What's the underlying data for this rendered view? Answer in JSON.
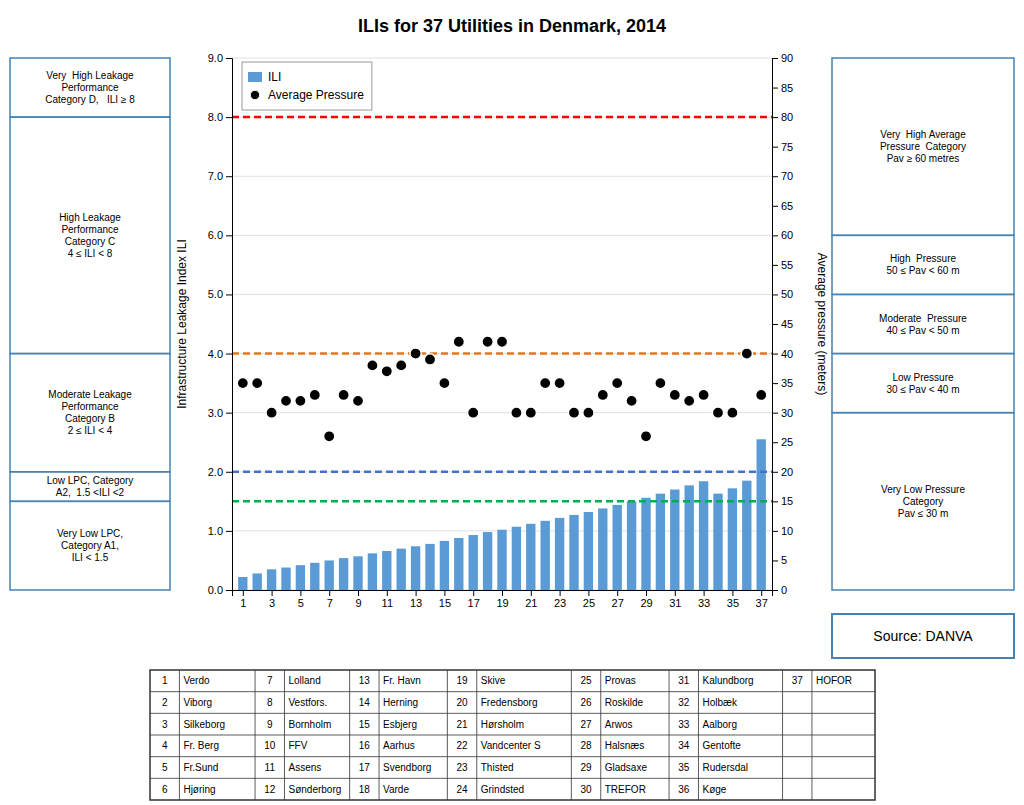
{
  "chart_data": {
    "type": "bar",
    "title": "ILIs for 37 Utilities in Denmark, 2014",
    "x": [
      1,
      2,
      3,
      4,
      5,
      6,
      7,
      8,
      9,
      10,
      11,
      12,
      13,
      14,
      15,
      16,
      17,
      18,
      19,
      20,
      21,
      22,
      23,
      24,
      25,
      26,
      27,
      28,
      29,
      30,
      31,
      32,
      33,
      34,
      35,
      36,
      37
    ],
    "xlim": [
      0.25,
      37.75
    ],
    "xticks": [
      1,
      3,
      5,
      7,
      9,
      11,
      13,
      15,
      17,
      19,
      21,
      23,
      25,
      27,
      29,
      31,
      33,
      35,
      37
    ],
    "ylim": [
      0.0,
      9.0
    ],
    "yticks": [
      {
        "value": 0.0,
        "label": "0.0"
      },
      {
        "value": 1.0,
        "label": "1.0"
      },
      {
        "value": 2.0,
        "label": "2.0"
      },
      {
        "value": 3.0,
        "label": "3.0"
      },
      {
        "value": 4.0,
        "label": "4.0"
      },
      {
        "value": 5.0,
        "label": "5.0"
      },
      {
        "value": 6.0,
        "label": "6.0"
      },
      {
        "value": 7.0,
        "label": "7.0"
      },
      {
        "value": 8.0,
        "label": "8.0"
      },
      {
        "value": 9.0,
        "label": "9.0"
      }
    ],
    "y2lim": [
      0,
      90
    ],
    "y2ticks": [
      0,
      5,
      10,
      15,
      20,
      25,
      30,
      35,
      40,
      45,
      50,
      55,
      60,
      65,
      70,
      75,
      80,
      85,
      90
    ],
    "ylabel": "Infrastructure Leakage Index ILI",
    "y2label": "Average pressure (meters)",
    "grid": true,
    "legend": "upper left",
    "series": [
      {
        "name": "ILI",
        "type": "bar",
        "color": "#5B9BD5",
        "values": [
          0.22,
          0.28,
          0.35,
          0.38,
          0.42,
          0.46,
          0.5,
          0.54,
          0.57,
          0.62,
          0.66,
          0.7,
          0.74,
          0.78,
          0.83,
          0.88,
          0.93,
          0.98,
          1.02,
          1.07,
          1.12,
          1.17,
          1.22,
          1.27,
          1.32,
          1.38,
          1.44,
          1.5,
          1.56,
          1.63,
          1.7,
          1.77,
          1.84,
          1.63,
          1.72,
          1.85,
          2.55
        ]
      },
      {
        "name": "Average Pressure",
        "type": "scatter",
        "marker": "circle",
        "color": "#000000",
        "axis": "y2",
        "values": [
          35,
          35,
          30,
          32,
          32,
          33,
          26,
          33,
          32,
          38,
          37,
          38,
          40,
          39,
          35,
          42,
          30,
          42,
          42,
          30,
          30,
          35,
          35,
          30,
          30,
          33,
          35,
          32,
          26,
          35,
          33,
          32,
          33,
          30,
          30,
          40,
          33
        ]
      }
    ],
    "reference_lines": [
      {
        "value": 8.0,
        "color": "red",
        "line_style": "dashed"
      },
      {
        "value": 4.0,
        "color": "#E07820",
        "line_style": "dashed"
      },
      {
        "value": 2.0,
        "color": "#4472C4",
        "line_style": "dashed"
      },
      {
        "value": 1.5,
        "color": "#00B050",
        "line_style": "dashed"
      }
    ],
    "left_panel": [
      {
        "text": "Very  High Leakage\nPerformance\nCategory D,   ILI ≥ 8",
        "from": 8.0,
        "to": 9.0
      },
      {
        "text": "High Leakage\nPerformance\nCategory C\n4 ≤ ILI < 8",
        "from": 4.0,
        "to": 8.0
      },
      {
        "text": "Moderate Leakage\nPerformance\nCategory B\n2 ≤ ILI < 4",
        "from": 2.0,
        "to": 4.0
      },
      {
        "text": "Low LPC, Category\nA2,  1.5 <ILI <2",
        "from": 1.5,
        "to": 2.0
      },
      {
        "text": "Very Low LPC,\nCategory A1,\nILI < 1.5",
        "from": 0.0,
        "to": 1.5
      }
    ],
    "right_panel": [
      {
        "text": "Very  High Average\nPressure  Category\nPav ≥ 60 metres",
        "from": 60,
        "to": 90
      },
      {
        "text": "High  Pressure\n50 ≤ Pav < 60 m",
        "from": 50,
        "to": 60
      },
      {
        "text": "Moderate  Pressure\n40 ≤ Pav < 50 m",
        "from": 40,
        "to": 50
      },
      {
        "text": "Low Pressure\n30 ≤ Pav < 40 m",
        "from": 30,
        "to": 40
      },
      {
        "text": "Very Low Pressure\nCategory\nPav ≤ 30 m",
        "from": 0,
        "to": 30
      }
    ],
    "source": "Source: DANVA",
    "table": [
      [
        {
          "number": "1",
          "name": "Verdo"
        },
        {
          "number": "2",
          "name": "Viborg"
        },
        {
          "number": "3",
          "name": "Silkeborg"
        },
        {
          "number": "4",
          "name": "Fr. Berg"
        },
        {
          "number": "5",
          "name": "Fr.Sund"
        },
        {
          "number": "6",
          "name": "Hjøring"
        }
      ],
      [
        {
          "number": "7",
          "name": "Lolland"
        },
        {
          "number": "8",
          "name": "Vestfors."
        },
        {
          "number": "9",
          "name": "Bornholm"
        },
        {
          "number": "10",
          "name": "FFV"
        },
        {
          "number": "11",
          "name": "Assens"
        },
        {
          "number": "12",
          "name": "Sønderborg"
        }
      ],
      [
        {
          "number": "13",
          "name": "Fr. Havn"
        },
        {
          "number": "14",
          "name": "Herning"
        },
        {
          "number": "15",
          "name": "Esbjerg"
        },
        {
          "number": "16",
          "name": "Aarhus"
        },
        {
          "number": "17",
          "name": "Svendborg"
        },
        {
          "number": "18",
          "name": "Varde"
        }
      ],
      [
        {
          "number": "19",
          "name": "Skive"
        },
        {
          "number": "20",
          "name": "Fredensborg"
        },
        {
          "number": "21",
          "name": "Hørsholm"
        },
        {
          "number": "22",
          "name": "Vandcenter S"
        },
        {
          "number": "23",
          "name": "Thisted"
        },
        {
          "number": "24",
          "name": "Grindsted"
        }
      ],
      [
        {
          "number": "25",
          "name": "Provas"
        },
        {
          "number": "26",
          "name": "Roskilde"
        },
        {
          "number": "27",
          "name": "Arwos"
        },
        {
          "number": "28",
          "name": "Halsnæs"
        },
        {
          "number": "29",
          "name": "Gladsaxe"
        },
        {
          "number": "30",
          "name": "TREFOR"
        }
      ],
      [
        {
          "number": "31",
          "name": "Kalundborg"
        },
        {
          "number": "32",
          "name": "Holbæk"
        },
        {
          "number": "33",
          "name": "Aalborg"
        },
        {
          "number": "34",
          "name": "Gentofte"
        },
        {
          "number": "35",
          "name": "Rudersdal"
        },
        {
          "number": "36",
          "name": "Køge"
        }
      ],
      [
        {
          "number": "37",
          "name": "HOFOR"
        }
      ]
    ]
  }
}
